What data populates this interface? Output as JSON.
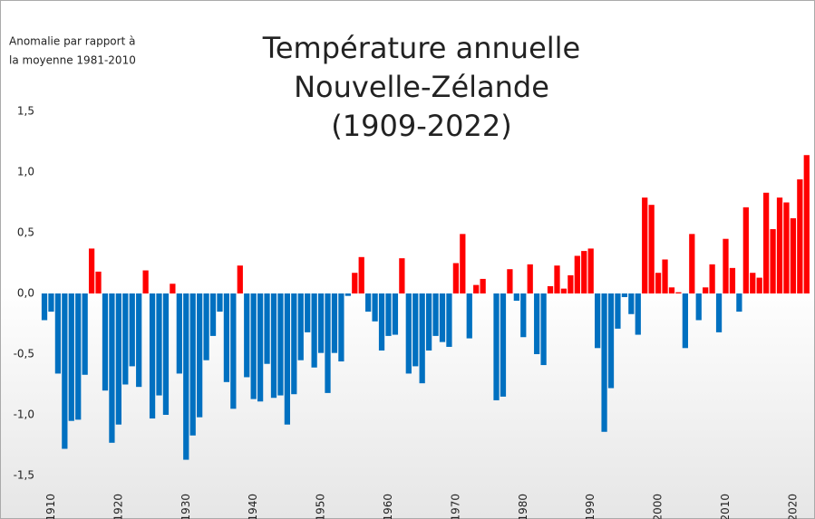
{
  "chart_data": {
    "type": "bar",
    "title_lines": [
      "Température annuelle",
      "Nouvelle-Zélande",
      "(1909-2022)"
    ],
    "y_label_lines": [
      "Anomalie par rapport à",
      "la moyenne 1981-2010"
    ],
    "x": [
      1909,
      1910,
      1911,
      1912,
      1913,
      1914,
      1915,
      1916,
      1917,
      1918,
      1919,
      1920,
      1921,
      1922,
      1923,
      1924,
      1925,
      1926,
      1927,
      1928,
      1929,
      1930,
      1931,
      1932,
      1933,
      1934,
      1935,
      1936,
      1937,
      1938,
      1939,
      1940,
      1941,
      1942,
      1943,
      1944,
      1945,
      1946,
      1947,
      1948,
      1949,
      1950,
      1951,
      1952,
      1953,
      1954,
      1955,
      1956,
      1957,
      1958,
      1959,
      1960,
      1961,
      1962,
      1963,
      1964,
      1965,
      1966,
      1967,
      1968,
      1969,
      1970,
      1971,
      1972,
      1973,
      1974,
      1975,
      1976,
      1977,
      1978,
      1979,
      1980,
      1981,
      1982,
      1983,
      1984,
      1985,
      1986,
      1987,
      1988,
      1989,
      1990,
      1991,
      1992,
      1993,
      1994,
      1995,
      1996,
      1997,
      1998,
      1999,
      2000,
      2001,
      2002,
      2003,
      2004,
      2005,
      2006,
      2007,
      2008,
      2009,
      2010,
      2011,
      2012,
      2013,
      2014,
      2015,
      2016,
      2017,
      2018,
      2019,
      2020,
      2021,
      2022
    ],
    "values": [
      -0.22,
      -0.15,
      -0.66,
      -1.28,
      -1.05,
      -1.04,
      -0.67,
      0.37,
      0.18,
      -0.8,
      -1.23,
      -1.08,
      -0.75,
      -0.6,
      -0.77,
      0.19,
      -1.03,
      -0.84,
      -1.0,
      0.08,
      -0.66,
      -1.37,
      -1.17,
      -1.02,
      -0.55,
      -0.35,
      -0.15,
      -0.73,
      -0.95,
      0.23,
      -0.69,
      -0.87,
      -0.89,
      -0.58,
      -0.86,
      -0.84,
      -1.08,
      -0.83,
      -0.55,
      -0.32,
      -0.61,
      -0.49,
      -0.82,
      -0.49,
      -0.56,
      -0.02,
      0.17,
      0.3,
      -0.15,
      -0.23,
      -0.47,
      -0.35,
      -0.34,
      0.29,
      -0.66,
      -0.6,
      -0.74,
      -0.47,
      -0.35,
      -0.4,
      -0.44,
      0.25,
      0.49,
      -0.37,
      0.07,
      0.12,
      0.0,
      -0.88,
      -0.85,
      0.2,
      -0.06,
      -0.36,
      0.24,
      -0.5,
      -0.59,
      0.06,
      0.23,
      0.04,
      0.15,
      0.31,
      0.35,
      0.37,
      -0.45,
      -1.14,
      -0.78,
      -0.29,
      -0.03,
      -0.17,
      -0.34,
      0.79,
      0.73,
      0.17,
      0.28,
      0.05,
      0.01,
      -0.45,
      0.49,
      -0.22,
      0.05,
      0.24,
      -0.32,
      0.45,
      0.21,
      -0.15,
      0.71,
      0.17,
      0.13,
      0.83,
      0.53,
      0.79,
      0.75,
      0.62,
      0.94,
      1.14
    ],
    "positive_color": "#ff0000",
    "negative_color": "#0070c0",
    "xlim": [
      1908.5,
      2022.5
    ],
    "xticks": [
      1910,
      1920,
      1930,
      1940,
      1950,
      1960,
      1970,
      1980,
      1990,
      2000,
      2010,
      2020
    ],
    "ylim": [
      -1.5,
      1.5
    ],
    "yticks": [
      {
        "value": 1.5,
        "label": "1,5"
      },
      {
        "value": 1.0,
        "label": "1,0"
      },
      {
        "value": 0.5,
        "label": "0,5"
      },
      {
        "value": 0.0,
        "label": "0,0"
      },
      {
        "value": -0.5,
        "label": "-0,5"
      },
      {
        "value": -1.0,
        "label": "-1,0"
      },
      {
        "value": -1.5,
        "label": "-1,5"
      }
    ]
  }
}
